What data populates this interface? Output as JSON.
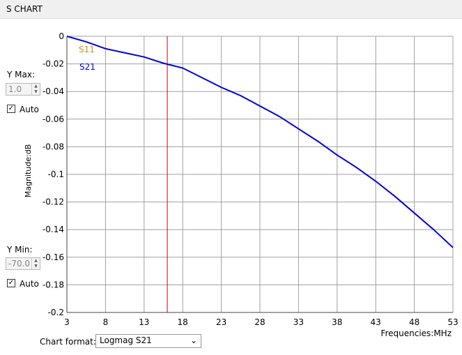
{
  "header": {
    "title": "S CHART"
  },
  "controls": {
    "ymax_label": "Y Max:",
    "ymax_value": "1.0",
    "ymax_auto": "Auto",
    "ymin_label": "Y Min:",
    "ymin_value": "-70.0",
    "ymin_auto": "Auto",
    "format_label": "Chart format:",
    "format_value": "Logmag S21"
  },
  "chart_data": {
    "type": "line",
    "y_label": "Magnitude:dB",
    "x_label": "Frequencies:MHz",
    "x": [
      3,
      5.5,
      8,
      10.5,
      13,
      15.5,
      18,
      20.5,
      23,
      25.5,
      28,
      30.5,
      33,
      35.5,
      38,
      40.5,
      43,
      45.5,
      48,
      50.5,
      53
    ],
    "series": [
      {
        "name": "S21",
        "color": "#0000dd",
        "values": [
          0,
          -0.004,
          -0.009,
          -0.012,
          -0.015,
          -0.0195,
          -0.023,
          -0.03,
          -0.037,
          -0.043,
          -0.0505,
          -0.058,
          -0.067,
          -0.076,
          -0.086,
          -0.095,
          -0.105,
          -0.116,
          -0.128,
          -0.14,
          -0.153
        ]
      }
    ],
    "legend_only": [
      {
        "name": "S11",
        "color": "#d88a1c"
      }
    ],
    "marker_x": 16,
    "marker_color": "#cc0000",
    "xlim": [
      3,
      53
    ],
    "xticks": [
      3,
      8,
      13,
      18,
      23,
      28,
      33,
      38,
      43,
      48,
      53
    ],
    "ylim": [
      -0.2,
      0
    ],
    "yticks": [
      0,
      -0.02,
      -0.04,
      -0.06,
      -0.08,
      -0.1,
      -0.12,
      -0.14,
      -0.16,
      -0.18,
      -0.2
    ],
    "grid": true
  }
}
